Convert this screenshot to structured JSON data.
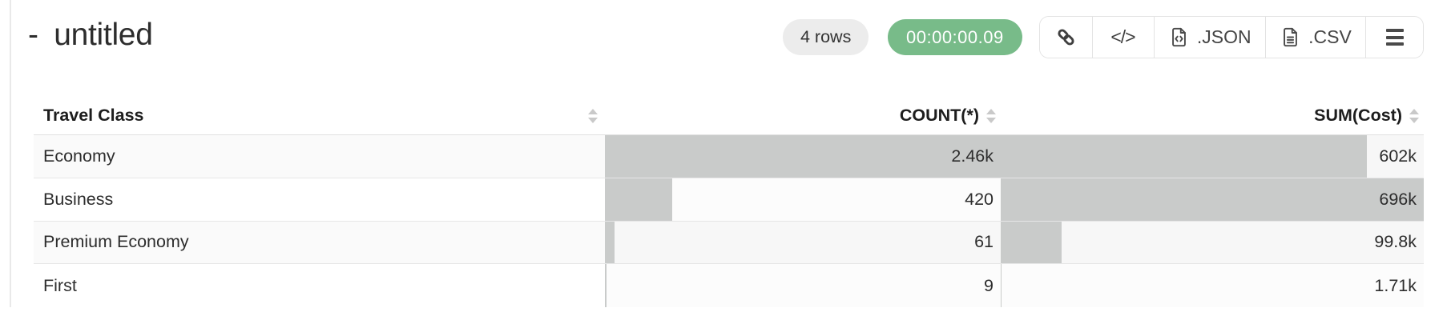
{
  "page": {
    "title": "- untitled"
  },
  "toolbar": {
    "rows_badge": "4 rows",
    "timer_badge": "00:00:00.09",
    "code_label": "</>",
    "json_label": ".JSON",
    "csv_label": ".CSV",
    "icons": {
      "link": "chain-link",
      "code": "angle-brackets",
      "json": "file-with-code",
      "csv": "file-with-lines",
      "menu": "hamburger",
      "sort": "up-down-triangles"
    }
  },
  "table": {
    "columns": [
      {
        "label": "Travel Class",
        "align": "left",
        "sortable": true
      },
      {
        "label": "COUNT(*)",
        "align": "right",
        "sortable": true
      },
      {
        "label": "SUM(Cost)",
        "align": "right",
        "sortable": true
      }
    ],
    "rows": [
      {
        "travel_class": "Economy",
        "count": "2.46k",
        "count_value": 2460,
        "sum": "602k",
        "sum_value": 602000
      },
      {
        "travel_class": "Business",
        "count": "420",
        "count_value": 420,
        "sum": "696k",
        "sum_value": 696000
      },
      {
        "travel_class": "Premium Economy",
        "count": "61",
        "count_value": 61,
        "sum": "99.8k",
        "sum_value": 99800
      },
      {
        "travel_class": "First",
        "count": "9",
        "count_value": 9,
        "sum": "1.71k",
        "sum_value": 1710
      }
    ]
  },
  "colors": {
    "timer_bg": "#78bb89",
    "badge_bg": "#ececec",
    "bar_fill": "#c9cbca",
    "row_alt_bg": "#fafafa",
    "border": "#e3e3e3"
  }
}
